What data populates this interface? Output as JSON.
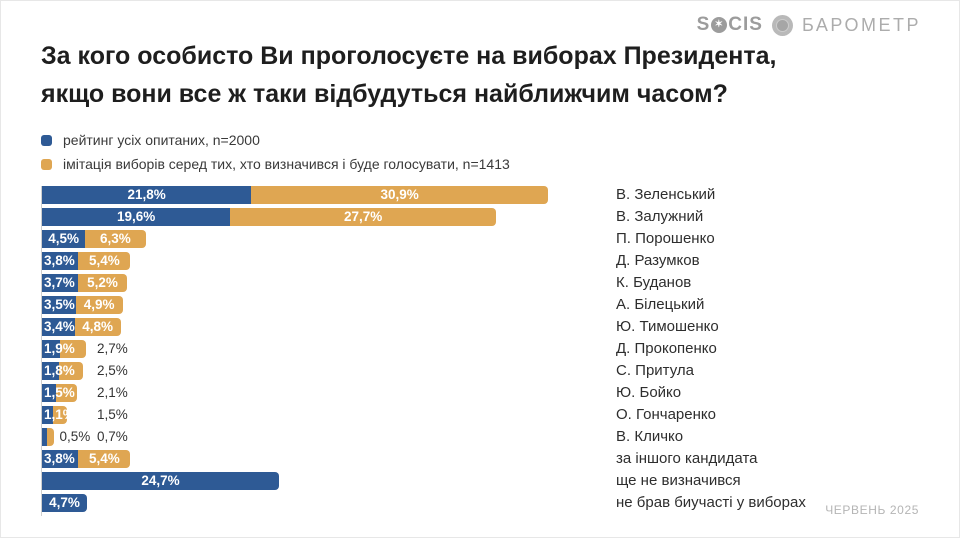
{
  "logo": {
    "socis_prefix": "S",
    "socis_suffix": "CIS",
    "barometer": "БАРОМЕТР"
  },
  "title": {
    "line1": "За кого особисто Ви проголосуєте на виборах Президента,",
    "line2": "якщо вони все ж таки відбудуться найближчим часом?"
  },
  "legend": [
    {
      "label": "рейтинг усіх опитаних, n=2000",
      "color": "#2e5a95"
    },
    {
      "label": "імітація виборів серед тих, хто визначився і буде голосувати, n=1413",
      "color": "#dfa652"
    }
  ],
  "chart_data": {
    "type": "bar",
    "orientation": "horizontal",
    "stacked": true,
    "unit": "%",
    "grid": false,
    "legend_position": "top-left",
    "xlim": [
      0,
      55
    ],
    "categories": [
      "В. Зеленський",
      "В. Залужний",
      "П. Порошенко",
      "Д. Разумков",
      "К. Буданов",
      "А. Білецький",
      "Ю. Тимошенко",
      "Д. Прокопенко",
      "С. Притула",
      "Ю. Бойко",
      "О. Гончаренко",
      "В. Кличко",
      "за іншого кандидата",
      "ще не визначився",
      "не брав биучасті у виборах"
    ],
    "series": [
      {
        "name": "рейтинг усіх опитаних, n=2000",
        "color": "#2e5a95",
        "values": [
          21.8,
          19.6,
          4.5,
          3.8,
          3.7,
          3.5,
          3.4,
          1.9,
          1.8,
          1.5,
          1.1,
          0.5,
          3.8,
          24.7,
          4.7
        ],
        "labels": [
          "21,8%",
          "19,6%",
          "4,5%",
          "3,8%",
          "3,7%",
          "3,5%",
          "3,4%",
          "1,9%",
          "1,8%",
          "1,5%",
          "1,1%",
          "0,5%",
          "3,8%",
          "24,7%",
          "4,7%"
        ]
      },
      {
        "name": "імітація виборів серед тих, хто визначився і буде голосувати, n=1413",
        "color": "#dfa652",
        "values": [
          30.9,
          27.7,
          6.3,
          5.4,
          5.2,
          4.9,
          4.8,
          2.7,
          2.5,
          2.1,
          1.5,
          0.7,
          5.4,
          null,
          null
        ],
        "labels": [
          "30,9%",
          "27,7%",
          "6,3%",
          "5,4%",
          "5,2%",
          "4,9%",
          "4,8%",
          "2,7%",
          "2,5%",
          "2,1%",
          "1,5%",
          "0,7%",
          "5,4%",
          null,
          null
        ]
      }
    ]
  },
  "footer": {
    "date": "ЧЕРВЕНЬ 2025"
  }
}
